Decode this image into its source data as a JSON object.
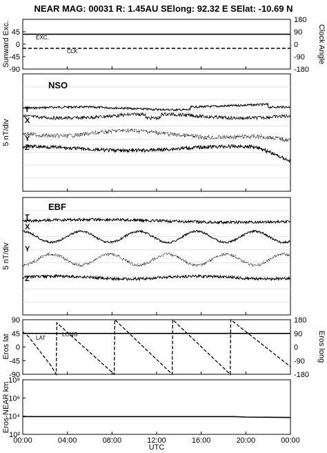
{
  "title": "NEAR MAG: 00031  R: 1.45AU  SElong:   92.32 E  SElat:  -10.69 N",
  "chart_data": [
    {
      "id": "sunward",
      "type": "line",
      "ylabel_left": "Sunward Exc.",
      "ylabel_right": "Clock Angle",
      "yticks_left": [
        "45",
        "0",
        "-45",
        "-90"
      ],
      "yticks_right": [
        "180",
        "90",
        "0",
        "-90",
        "-180"
      ],
      "ylim_left": [
        -90,
        90
      ],
      "series": [
        {
          "name": "EXC.",
          "values": [
            [
              0,
              36
            ],
            [
              24,
              36
            ]
          ]
        },
        {
          "name": "CLK",
          "values": [
            [
              0,
              -15
            ],
            [
              24,
              -15
            ]
          ]
        }
      ]
    },
    {
      "id": "nso",
      "type": "line",
      "panel_label": "NSO",
      "ylabel": "5 nT/div",
      "trace_labels": [
        "T",
        "X",
        "Y",
        "Z"
      ]
    },
    {
      "id": "ebf",
      "type": "line",
      "panel_label": "EBF",
      "ylabel": "5 nT/div",
      "trace_labels": [
        "T",
        "X",
        "Y",
        "Z"
      ]
    },
    {
      "id": "eros",
      "type": "line",
      "ylabel_left": "Eros lat",
      "ylabel_right": "Eros long",
      "yticks_left": [
        "90",
        "45",
        "0",
        "-45",
        "-90"
      ],
      "yticks_right": [
        "180",
        "90",
        "0",
        "-90",
        "-180"
      ],
      "ylim_left": [
        -90,
        90
      ],
      "series": [
        {
          "name": "LAT",
          "values": [
            [
              0,
              45
            ],
            [
              24,
              45
            ]
          ]
        },
        {
          "name": "LONG",
          "values": [
            [
              0,
              50
            ],
            [
              0.5,
              35
            ],
            [
              2.5,
              -60
            ],
            [
              3.0,
              -90
            ],
            [
              3.05,
              80
            ],
            [
              8.2,
              -90
            ],
            [
              8.25,
              90
            ],
            [
              13.4,
              -90
            ],
            [
              13.45,
              90
            ],
            [
              18.6,
              -90
            ],
            [
              18.65,
              90
            ],
            [
              24,
              -65
            ]
          ]
        }
      ]
    },
    {
      "id": "range",
      "type": "line",
      "ylabel": "Eros-NEAR km",
      "yticks": [
        "10⁸",
        "10⁶",
        "10⁴",
        "10²"
      ],
      "ylim_log": [
        2,
        8
      ],
      "series": [
        {
          "values": [
            [
              0,
              3.95
            ],
            [
              19,
              3.95
            ],
            [
              20,
              3.9
            ],
            [
              24,
              3.85
            ]
          ]
        }
      ]
    }
  ],
  "xaxis": {
    "label": "UTC",
    "ticks": [
      "00:00",
      "04:00",
      "08:00",
      "12:00",
      "16:00",
      "20:00",
      "00:00"
    ],
    "xlim": [
      0,
      24
    ]
  }
}
